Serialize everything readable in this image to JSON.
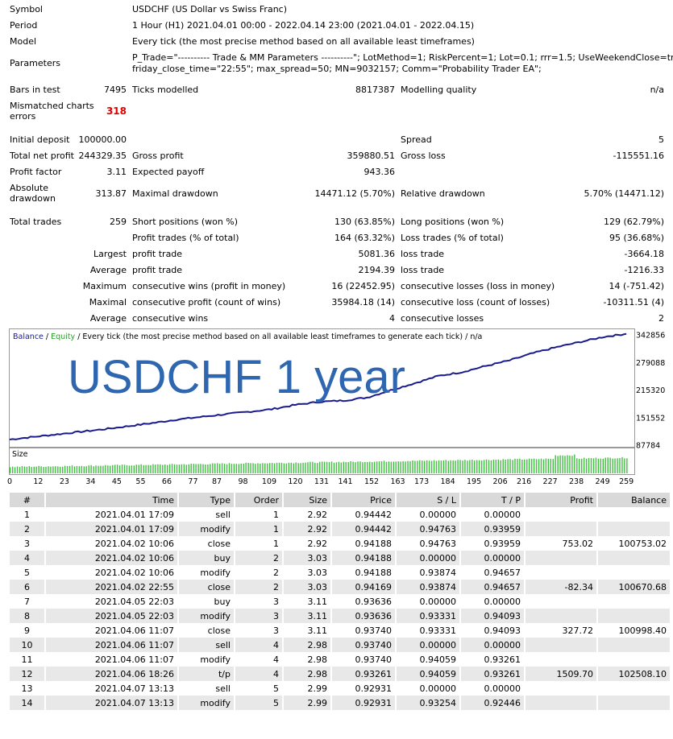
{
  "summary": {
    "symbol_label": "Symbol",
    "symbol": "USDCHF (US Dollar vs Swiss Franc)",
    "period_label": "Period",
    "period": "1 Hour (H1) 2021.04.01 00:00 - 2022.04.14 23:00 (2021.04.01 - 2022.04.15)",
    "model_label": "Model",
    "model": "Every tick (the most precise method based on all available least timeframes)",
    "parameters_label": "Parameters",
    "parameters_line1": "P_Trade=\"---------- Trade & MM Parameters ----------\"; LotMethod=1; RiskPercent=1; Lot=0.1; rrr=1.5; UseWeekendClose=true;",
    "parameters_line2": "friday_close_time=\"22:55\"; max_spread=50; MN=9032157; Comm=\"Probability Trader EA\";",
    "bars_label": "Bars in test",
    "bars": "7495",
    "ticks_label": "Ticks modelled",
    "ticks": "8817387",
    "quality_label": "Modelling quality",
    "quality": "n/a",
    "mismatch_label1": "Mismatched charts",
    "mismatch_label2": "errors",
    "mismatch": "318",
    "initial_label": "Initial deposit",
    "initial": "100000.00",
    "spread_label": "Spread",
    "spread": "5",
    "net_label": "Total net profit",
    "net": "244329.35",
    "gross_profit_label": "Gross profit",
    "gross_profit": "359880.51",
    "gross_loss_label": "Gross loss",
    "gross_loss": "-115551.16",
    "pf_label": "Profit factor",
    "pf": "3.11",
    "ep_label": "Expected payoff",
    "ep": "943.36",
    "abs_dd_label1": "Absolute",
    "abs_dd_label2": "drawdown",
    "abs_dd": "313.87",
    "max_dd_label": "Maximal drawdown",
    "max_dd": "14471.12 (5.70%)",
    "rel_dd_label": "Relative drawdown",
    "rel_dd": "5.70% (14471.12)",
    "total_trades_label": "Total trades",
    "total_trades": "259",
    "short_label": "Short positions (won %)",
    "short": "130 (63.85%)",
    "long_label": "Long positions (won %)",
    "long": "129 (62.79%)",
    "profit_trades_label": "Profit trades (% of total)",
    "profit_trades": "164 (63.32%)",
    "loss_trades_label": "Loss trades (% of total)",
    "loss_trades": "95 (36.68%)",
    "largest_label": "Largest",
    "largest_profit_label": "profit trade",
    "largest_profit": "5081.36",
    "largest_loss_label": "loss trade",
    "largest_loss": "-3664.18",
    "average_label": "Average",
    "average_profit_label": "profit trade",
    "average_profit": "2194.39",
    "average_loss_label": "loss trade",
    "average_loss": "-1216.33",
    "maximum_label": "Maximum",
    "cons_wins_label": "consecutive wins (profit in money)",
    "cons_wins": "16 (22452.95)",
    "cons_losses_label": "consecutive losses (loss in money)",
    "cons_losses": "14 (-751.42)",
    "maximal_label": "Maximal",
    "cons_profit_label": "consecutive profit (count of wins)",
    "cons_profit": "35984.18 (14)",
    "cons_loss_label": "consecutive loss (count of losses)",
    "cons_loss": "-10311.51 (4)",
    "average2_label": "Average",
    "avg_cons_wins_label": "consecutive wins",
    "avg_cons_wins": "4",
    "avg_cons_losses_label": "consecutive losses",
    "avg_cons_losses": "2"
  },
  "chart_header": {
    "balance": "Balance",
    "sep1": " / ",
    "equity": "Equity",
    "rest": " / Every tick (the most precise method based on all available least timeframes to generate each tick) / n/a"
  },
  "overlay_title": "USDCHF 1 year",
  "size_label": "Size",
  "colors": {
    "balance_line": "#1a1a8c",
    "equity_label": "#2e9b2e",
    "balance_label": "#1a1a8c",
    "overlay_text": "#2f66b0",
    "volume_bars": "#3fbf3f",
    "mismatch": "#e00000"
  },
  "chart_data": {
    "type": "line",
    "title": "",
    "xlabel": "",
    "ylabel": "",
    "y_ticks": [
      342856,
      279088,
      215320,
      151552,
      87784
    ],
    "x_ticks": [
      0,
      12,
      23,
      34,
      45,
      55,
      66,
      77,
      87,
      98,
      109,
      120,
      131,
      141,
      152,
      163,
      173,
      184,
      195,
      206,
      216,
      227,
      238,
      249,
      259
    ],
    "xlim": [
      0,
      262
    ],
    "ylim": [
      85000,
      355000
    ],
    "series": [
      {
        "name": "Balance",
        "x": [
          0,
          10,
          20,
          30,
          40,
          50,
          60,
          70,
          80,
          90,
          100,
          110,
          120,
          130,
          140,
          150,
          160,
          170,
          180,
          190,
          200,
          210,
          220,
          230,
          240,
          250,
          259
        ],
        "values": [
          100000,
          106000,
          112000,
          118000,
          124000,
          131000,
          138000,
          146000,
          152000,
          158000,
          164000,
          170000,
          180000,
          187000,
          190000,
          197000,
          214000,
          230000,
          247000,
          256000,
          270000,
          283000,
          300000,
          314000,
          326000,
          338000,
          344329
        ]
      }
    ],
    "size_series": {
      "name": "Size",
      "x_start": 0,
      "x_end": 259,
      "values_start": 2.9,
      "values_end": 7.0
    }
  },
  "trades": {
    "headers": [
      "#",
      "Time",
      "Type",
      "Order",
      "Size",
      "Price",
      "S / L",
      "T / P",
      "Profit",
      "Balance"
    ],
    "rows": [
      [
        "1",
        "2021.04.01 17:09",
        "sell",
        "1",
        "2.92",
        "0.94442",
        "0.00000",
        "0.00000",
        "",
        ""
      ],
      [
        "2",
        "2021.04.01 17:09",
        "modify",
        "1",
        "2.92",
        "0.94442",
        "0.94763",
        "0.93959",
        "",
        ""
      ],
      [
        "3",
        "2021.04.02 10:06",
        "close",
        "1",
        "2.92",
        "0.94188",
        "0.94763",
        "0.93959",
        "753.02",
        "100753.02"
      ],
      [
        "4",
        "2021.04.02 10:06",
        "buy",
        "2",
        "3.03",
        "0.94188",
        "0.00000",
        "0.00000",
        "",
        ""
      ],
      [
        "5",
        "2021.04.02 10:06",
        "modify",
        "2",
        "3.03",
        "0.94188",
        "0.93874",
        "0.94657",
        "",
        ""
      ],
      [
        "6",
        "2021.04.02 22:55",
        "close",
        "2",
        "3.03",
        "0.94169",
        "0.93874",
        "0.94657",
        "-82.34",
        "100670.68"
      ],
      [
        "7",
        "2021.04.05 22:03",
        "buy",
        "3",
        "3.11",
        "0.93636",
        "0.00000",
        "0.00000",
        "",
        ""
      ],
      [
        "8",
        "2021.04.05 22:03",
        "modify",
        "3",
        "3.11",
        "0.93636",
        "0.93331",
        "0.94093",
        "",
        ""
      ],
      [
        "9",
        "2021.04.06 11:07",
        "close",
        "3",
        "3.11",
        "0.93740",
        "0.93331",
        "0.94093",
        "327.72",
        "100998.40"
      ],
      [
        "10",
        "2021.04.06 11:07",
        "sell",
        "4",
        "2.98",
        "0.93740",
        "0.00000",
        "0.00000",
        "",
        ""
      ],
      [
        "11",
        "2021.04.06 11:07",
        "modify",
        "4",
        "2.98",
        "0.93740",
        "0.94059",
        "0.93261",
        "",
        ""
      ],
      [
        "12",
        "2021.04.06 18:26",
        "t/p",
        "4",
        "2.98",
        "0.93261",
        "0.94059",
        "0.93261",
        "1509.70",
        "102508.10"
      ],
      [
        "13",
        "2021.04.07 13:13",
        "sell",
        "5",
        "2.99",
        "0.92931",
        "0.00000",
        "0.00000",
        "",
        ""
      ],
      [
        "14",
        "2021.04.07 13:13",
        "modify",
        "5",
        "2.99",
        "0.92931",
        "0.93254",
        "0.92446",
        "",
        ""
      ]
    ]
  }
}
